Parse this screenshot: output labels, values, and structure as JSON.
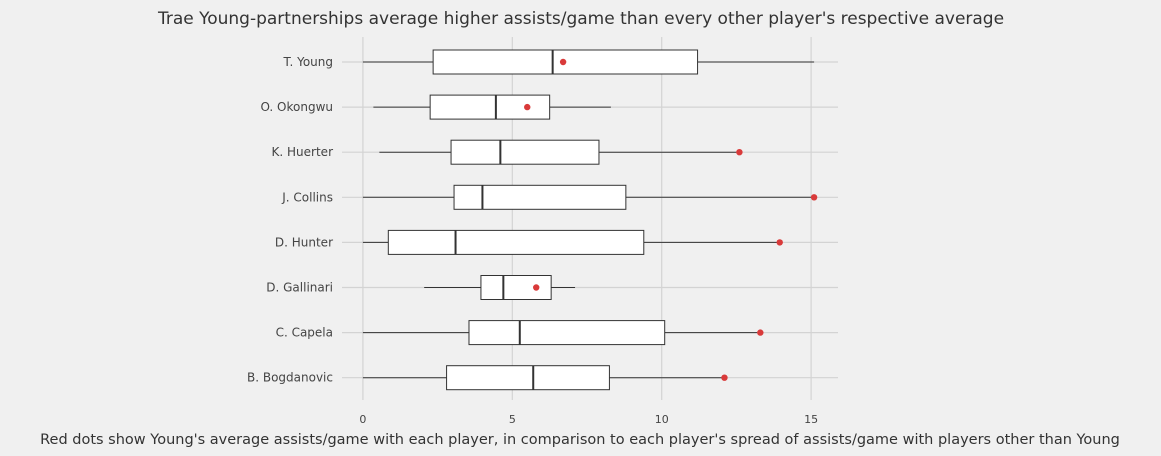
{
  "chart_data": {
    "type": "boxplot",
    "title": "Trae Young-partnerships average higher assists/game than every other player's respective average",
    "caption": "Red dots show Young's average assists/game with each player, in comparison to each player's spread of assists/game with players other than Young",
    "xlim": [
      -0.7,
      15.9
    ],
    "xticks": [
      0,
      5,
      10,
      15
    ],
    "grid": true,
    "categories": [
      "T. Young",
      "O. Okongwu",
      "K. Huerter",
      "J. Collins",
      "D. Hunter",
      "D. Gallinari",
      "C. Capela",
      "B. Bogdanovic"
    ],
    "boxes": [
      {
        "whislo": 0.0,
        "q1": 2.35,
        "median": 6.35,
        "q3": 11.2,
        "whishi": 15.1
      },
      {
        "whislo": 0.35,
        "q1": 2.25,
        "median": 4.45,
        "q3": 6.25,
        "whishi": 8.3
      },
      {
        "whislo": 0.55,
        "q1": 2.95,
        "median": 4.6,
        "q3": 7.9,
        "whishi": 12.5
      },
      {
        "whislo": 0.0,
        "q1": 3.05,
        "median": 4.0,
        "q3": 8.8,
        "whishi": 15.05
      },
      {
        "whislo": 0.0,
        "q1": 0.85,
        "median": 3.1,
        "q3": 9.4,
        "whishi": 14.0
      },
      {
        "whislo": 2.05,
        "q1": 3.95,
        "median": 4.7,
        "q3": 6.3,
        "whishi": 7.1
      },
      {
        "whislo": 0.0,
        "q1": 3.55,
        "median": 5.25,
        "q3": 10.1,
        "whishi": 13.2
      },
      {
        "whislo": 0.0,
        "q1": 2.8,
        "median": 5.7,
        "q3": 8.25,
        "whishi": 12.1
      }
    ],
    "young_avg": [
      6.7,
      5.5,
      12.6,
      15.1,
      13.95,
      5.8,
      13.3,
      12.1
    ],
    "colors": {
      "dot": "#d93a3a",
      "box": "#ffffff",
      "line": "#333333",
      "grid": "#d3d3d3",
      "background": "#f0f0f0"
    }
  }
}
